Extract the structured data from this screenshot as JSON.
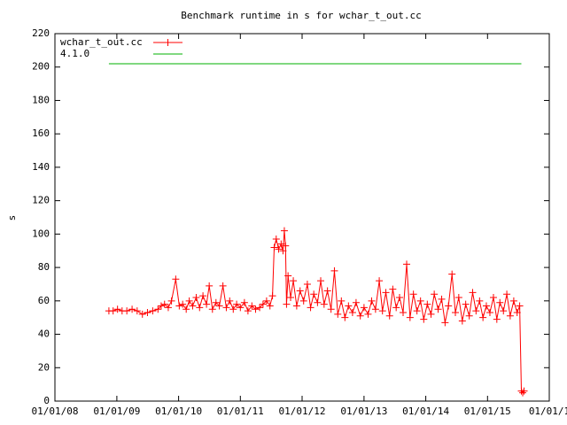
{
  "chart_data": {
    "type": "line",
    "title": "Benchmark runtime in s for wchar_t_out.cc",
    "y_label": "s",
    "legend": "top-left",
    "xlim": [
      "2008-01-01",
      "2016-01-01"
    ],
    "xticks": [
      {
        "value": "2008-01-01",
        "label": "01/01/08"
      },
      {
        "value": "2009-01-01",
        "label": "01/01/09"
      },
      {
        "value": "2010-01-01",
        "label": "01/01/10"
      },
      {
        "value": "2011-01-01",
        "label": "01/01/11"
      },
      {
        "value": "2012-01-01",
        "label": "01/01/12"
      },
      {
        "value": "2013-01-01",
        "label": "01/01/13"
      },
      {
        "value": "2014-01-01",
        "label": "01/01/14"
      },
      {
        "value": "2015-01-01",
        "label": "01/01/15"
      },
      {
        "value": "2016-01-01",
        "label": "01/01/1"
      }
    ],
    "ylim": [
      0,
      220
    ],
    "yticks": [
      0,
      20,
      40,
      60,
      80,
      100,
      120,
      140,
      160,
      180,
      200,
      220
    ],
    "series": [
      {
        "name": "wchar_t_out.cc",
        "color": "#ff0000",
        "marker": "+",
        "x": [
          "2008-11-15",
          "2008-12-10",
          "2009-01-05",
          "2009-02-01",
          "2009-03-01",
          "2009-04-01",
          "2009-05-01",
          "2009-06-01",
          "2009-07-01",
          "2009-08-01",
          "2009-09-01",
          "2009-09-20",
          "2009-10-10",
          "2009-11-01",
          "2009-11-20",
          "2009-12-15",
          "2010-01-05",
          "2010-01-25",
          "2010-02-15",
          "2010-03-05",
          "2010-03-25",
          "2010-04-15",
          "2010-05-05",
          "2010-05-25",
          "2010-06-15",
          "2010-07-01",
          "2010-07-20",
          "2010-08-10",
          "2010-08-30",
          "2010-09-20",
          "2010-10-10",
          "2010-10-30",
          "2010-11-20",
          "2010-12-10",
          "2011-01-01",
          "2011-01-25",
          "2011-02-15",
          "2011-03-10",
          "2011-04-01",
          "2011-04-25",
          "2011-05-15",
          "2011-06-05",
          "2011-06-25",
          "2011-07-10",
          "2011-07-20",
          "2011-08-01",
          "2011-08-15",
          "2011-08-30",
          "2011-09-10",
          "2011-09-18",
          "2011-09-25",
          "2011-10-01",
          "2011-10-10",
          "2011-10-25",
          "2011-11-10",
          "2011-11-30",
          "2011-12-20",
          "2012-01-10",
          "2012-02-01",
          "2012-02-20",
          "2012-03-10",
          "2012-04-01",
          "2012-04-20",
          "2012-05-10",
          "2012-05-30",
          "2012-06-20",
          "2012-07-10",
          "2012-07-30",
          "2012-08-20",
          "2012-09-10",
          "2012-10-01",
          "2012-10-25",
          "2012-11-15",
          "2012-12-10",
          "2013-01-01",
          "2013-01-25",
          "2013-02-15",
          "2013-03-10",
          "2013-04-01",
          "2013-04-20",
          "2013-05-10",
          "2013-06-01",
          "2013-06-20",
          "2013-07-10",
          "2013-07-30",
          "2013-08-20",
          "2013-09-10",
          "2013-09-30",
          "2013-10-20",
          "2013-11-10",
          "2013-12-01",
          "2013-12-20",
          "2014-01-10",
          "2014-02-01",
          "2014-02-20",
          "2014-03-15",
          "2014-04-05",
          "2014-04-25",
          "2014-05-15",
          "2014-06-05",
          "2014-06-25",
          "2014-07-15",
          "2014-08-05",
          "2014-08-25",
          "2014-09-15",
          "2014-10-05",
          "2014-10-25",
          "2014-11-15",
          "2014-12-05",
          "2014-12-25",
          "2015-01-15",
          "2015-02-05",
          "2015-02-25",
          "2015-03-15",
          "2015-04-05",
          "2015-04-25",
          "2015-05-15",
          "2015-06-05",
          "2015-06-25",
          "2015-07-10",
          "2015-07-20",
          "2015-07-28",
          "2015-08-05"
        ],
        "values": [
          54,
          54,
          55,
          54,
          54,
          55,
          54,
          52,
          53,
          54,
          55,
          57,
          58,
          56,
          60,
          73,
          57,
          58,
          55,
          60,
          57,
          62,
          56,
          63,
          58,
          69,
          55,
          59,
          57,
          69,
          56,
          60,
          55,
          58,
          56,
          59,
          54,
          57,
          55,
          56,
          58,
          60,
          57,
          63,
          92,
          97,
          91,
          94,
          90,
          102,
          93,
          58,
          75,
          62,
          72,
          57,
          66,
          60,
          70,
          56,
          64,
          59,
          72,
          58,
          66,
          55,
          78,
          52,
          60,
          50,
          57,
          53,
          59,
          51,
          56,
          52,
          60,
          55,
          72,
          54,
          65,
          51,
          67,
          56,
          62,
          53,
          82,
          50,
          64,
          54,
          60,
          49,
          58,
          52,
          64,
          55,
          61,
          47,
          57,
          76,
          53,
          62,
          48,
          58,
          51,
          65,
          54,
          60,
          50,
          57,
          53,
          62,
          49,
          59,
          54,
          64,
          51,
          60,
          53,
          57,
          6,
          5,
          6
        ]
      },
      {
        "name": "4.1.0",
        "color": "#00b000",
        "x": [
          "2008-11-15",
          "2015-07-20"
        ],
        "values": [
          202,
          202
        ]
      }
    ]
  }
}
